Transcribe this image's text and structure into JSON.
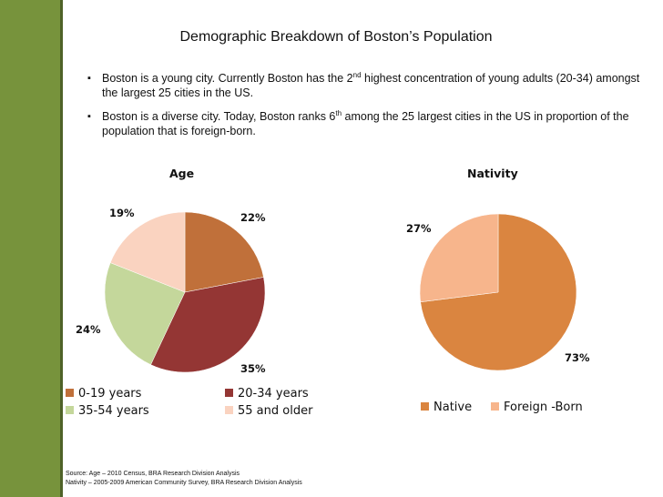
{
  "slide": {
    "title": "Demographic Breakdown of Boston’s Population",
    "bullets": [
      {
        "before": "Boston is a young city. Currently Boston has the 2",
        "sup": "nd",
        "after": " highest concentration of young adults (20-34) amongst the largest 25 cities in the US."
      },
      {
        "before": "Boston is a diverse city. Today, Boston ranks 6",
        "sup": "th",
        "after": " among the 25 largest cities in the US in proportion of the population that is foreign-born."
      }
    ],
    "source_lines": [
      "Source: Age – 2010 Census, BRA Research Division Analysis",
      "Nativity – 2005-2009 American Community Survey,  BRA Research Division Analysis"
    ]
  },
  "colors": {
    "sidebar": "#77933c",
    "age_0_19": "#c0703a",
    "age_20_34": "#943634",
    "age_35_54": "#c4d79b",
    "age_55_up": "#fad3c0",
    "native": "#da8540",
    "foreign_born": "#f7b58c"
  },
  "chart_data": [
    {
      "type": "pie",
      "title": "Age",
      "categories": [
        "0-19 years",
        "20-34 years",
        "35-54 years",
        "55 and older"
      ],
      "values": [
        22,
        35,
        24,
        19
      ],
      "labels": [
        "22%",
        "35%",
        "24%",
        "19%"
      ],
      "legend": "bottom"
    },
    {
      "type": "pie",
      "title": "Nativity",
      "categories": [
        "Native",
        "Foreign -Born"
      ],
      "values": [
        73,
        27
      ],
      "labels": [
        "73%",
        "27%"
      ],
      "legend": "bottom"
    }
  ]
}
